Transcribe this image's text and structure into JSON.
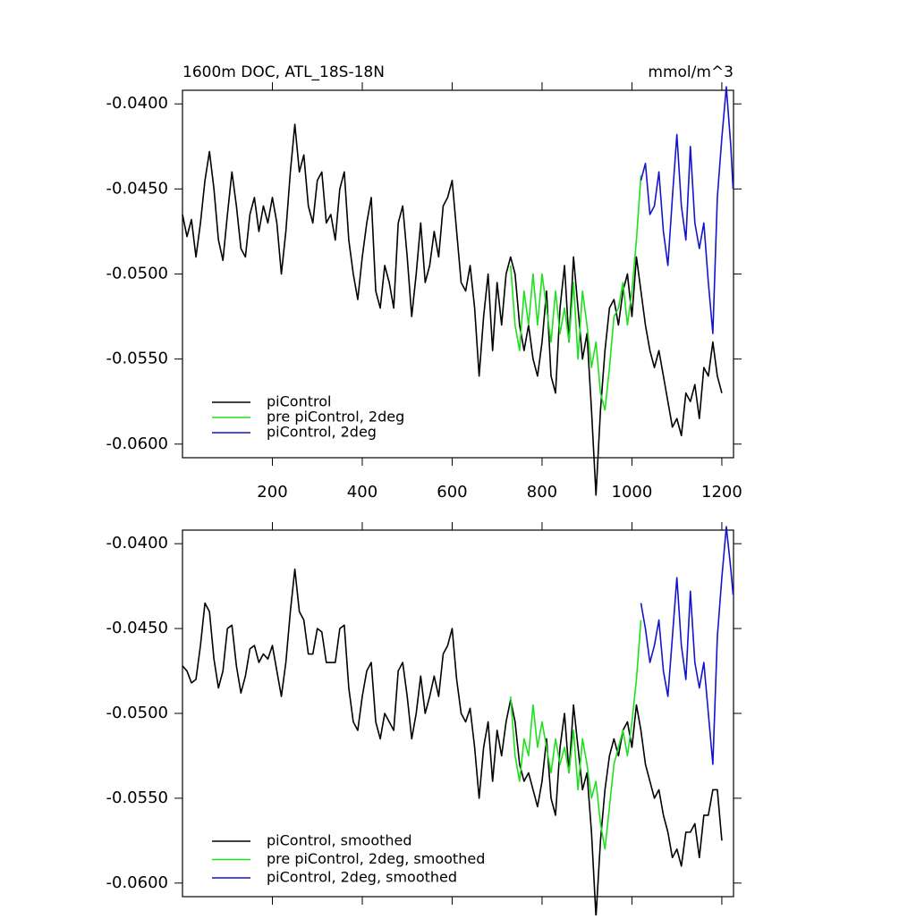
{
  "chart_data": [
    {
      "type": "line",
      "title": "1600m DOC, ATL_18S-18N",
      "y_units": "mmol/m^3",
      "xlim": [
        0,
        1226
      ],
      "ylim": [
        -0.0608,
        -0.0392
      ],
      "xticks": [
        200,
        400,
        600,
        800,
        1000,
        1200
      ],
      "yticks": [
        {
          "value": -0.04,
          "label": "-0.0400"
        },
        {
          "value": -0.045,
          "label": "-0.0450"
        },
        {
          "value": -0.05,
          "label": "-0.0500"
        },
        {
          "value": -0.055,
          "label": "-0.0550"
        },
        {
          "value": -0.06,
          "label": "-0.0600"
        }
      ],
      "legend_position": "lower left",
      "series": [
        {
          "name": "piControl",
          "color": "#000000",
          "x": [
            0,
            10,
            20,
            30,
            40,
            50,
            60,
            70,
            80,
            90,
            100,
            110,
            120,
            130,
            140,
            150,
            160,
            170,
            180,
            190,
            200,
            210,
            220,
            230,
            240,
            250,
            260,
            270,
            280,
            290,
            300,
            310,
            320,
            330,
            340,
            350,
            360,
            370,
            380,
            390,
            400,
            410,
            420,
            430,
            440,
            450,
            460,
            470,
            480,
            490,
            500,
            510,
            520,
            530,
            540,
            550,
            560,
            570,
            580,
            590,
            600,
            610,
            620,
            630,
            640,
            650,
            660,
            670,
            680,
            690,
            700,
            710,
            720,
            730,
            740,
            750,
            760,
            770,
            780,
            790,
            800,
            810,
            820,
            830,
            840,
            850,
            860,
            870,
            880,
            890,
            900,
            910,
            920,
            930,
            940,
            950,
            960,
            970,
            980,
            990,
            1000,
            1010,
            1020,
            1030,
            1040,
            1050,
            1060,
            1070,
            1080,
            1090,
            1100,
            1110,
            1120,
            1130,
            1140,
            1150,
            1160,
            1170,
            1180,
            1190,
            1200
          ],
          "values": [
            -0.0465,
            -0.0478,
            -0.0468,
            -0.049,
            -0.047,
            -0.0445,
            -0.0428,
            -0.045,
            -0.048,
            -0.0492,
            -0.0465,
            -0.044,
            -0.046,
            -0.0485,
            -0.049,
            -0.0465,
            -0.0455,
            -0.0475,
            -0.046,
            -0.047,
            -0.0455,
            -0.047,
            -0.05,
            -0.0475,
            -0.044,
            -0.0412,
            -0.044,
            -0.043,
            -0.046,
            -0.047,
            -0.0445,
            -0.044,
            -0.047,
            -0.0465,
            -0.048,
            -0.045,
            -0.044,
            -0.048,
            -0.05,
            -0.0515,
            -0.049,
            -0.047,
            -0.0455,
            -0.051,
            -0.052,
            -0.0495,
            -0.0505,
            -0.052,
            -0.047,
            -0.046,
            -0.049,
            -0.0525,
            -0.05,
            -0.047,
            -0.0505,
            -0.0495,
            -0.0475,
            -0.049,
            -0.046,
            -0.0455,
            -0.0445,
            -0.0475,
            -0.0505,
            -0.051,
            -0.0495,
            -0.052,
            -0.056,
            -0.0525,
            -0.05,
            -0.0545,
            -0.0505,
            -0.053,
            -0.05,
            -0.049,
            -0.05,
            -0.053,
            -0.0545,
            -0.053,
            -0.055,
            -0.056,
            -0.054,
            -0.051,
            -0.056,
            -0.057,
            -0.052,
            -0.0495,
            -0.054,
            -0.049,
            -0.052,
            -0.055,
            -0.0535,
            -0.058,
            -0.063,
            -0.058,
            -0.0545,
            -0.052,
            -0.0515,
            -0.053,
            -0.051,
            -0.05,
            -0.0525,
            -0.049,
            -0.051,
            -0.053,
            -0.0545,
            -0.0555,
            -0.0545,
            -0.056,
            -0.0575,
            -0.059,
            -0.0585,
            -0.0595,
            -0.057,
            -0.0575,
            -0.0565,
            -0.0585,
            -0.0555,
            -0.056,
            -0.054,
            -0.056,
            -0.057
          ]
        },
        {
          "name": "pre piControl, 2deg",
          "color": "#1fe01f",
          "x": [
            730,
            740,
            750,
            760,
            770,
            780,
            790,
            800,
            810,
            820,
            830,
            840,
            850,
            860,
            870,
            880,
            890,
            900,
            910,
            920,
            930,
            940,
            950,
            960,
            970,
            980,
            990,
            1000,
            1010,
            1020
          ],
          "values": [
            -0.0495,
            -0.053,
            -0.0545,
            -0.051,
            -0.053,
            -0.05,
            -0.053,
            -0.05,
            -0.052,
            -0.054,
            -0.051,
            -0.0535,
            -0.052,
            -0.054,
            -0.0505,
            -0.055,
            -0.051,
            -0.053,
            -0.0555,
            -0.054,
            -0.057,
            -0.058,
            -0.0555,
            -0.0525,
            -0.052,
            -0.0505,
            -0.053,
            -0.051,
            -0.048,
            -0.0442
          ]
        },
        {
          "name": "piControl, 2deg",
          "color": "#1414cc",
          "x": [
            1020,
            1030,
            1040,
            1050,
            1060,
            1070,
            1080,
            1090,
            1100,
            1110,
            1120,
            1130,
            1140,
            1150,
            1160,
            1170,
            1180,
            1190,
            1200,
            1210,
            1220,
            1225
          ],
          "values": [
            -0.0445,
            -0.0435,
            -0.0465,
            -0.046,
            -0.044,
            -0.0475,
            -0.0495,
            -0.0455,
            -0.0418,
            -0.046,
            -0.048,
            -0.0425,
            -0.047,
            -0.0485,
            -0.047,
            -0.0505,
            -0.0535,
            -0.0455,
            -0.042,
            -0.039,
            -0.0425,
            -0.045
          ]
        }
      ]
    },
    {
      "type": "line",
      "xlim": [
        0,
        1226
      ],
      "ylim": [
        -0.0608,
        -0.0392
      ],
      "yticks": [
        {
          "value": -0.04,
          "label": "-0.0400"
        },
        {
          "value": -0.045,
          "label": "-0.0450"
        },
        {
          "value": -0.05,
          "label": "-0.0500"
        },
        {
          "value": -0.055,
          "label": "-0.0550"
        },
        {
          "value": -0.06,
          "label": "-0.0600"
        }
      ],
      "legend_position": "lower left",
      "series": [
        {
          "name": "piControl, smoothed",
          "color": "#000000",
          "x": [
            0,
            10,
            20,
            30,
            40,
            50,
            60,
            70,
            80,
            90,
            100,
            110,
            120,
            130,
            140,
            150,
            160,
            170,
            180,
            190,
            200,
            210,
            220,
            230,
            240,
            250,
            260,
            270,
            280,
            290,
            300,
            310,
            320,
            330,
            340,
            350,
            360,
            370,
            380,
            390,
            400,
            410,
            420,
            430,
            440,
            450,
            460,
            470,
            480,
            490,
            500,
            510,
            520,
            530,
            540,
            550,
            560,
            570,
            580,
            590,
            600,
            610,
            620,
            630,
            640,
            650,
            660,
            670,
            680,
            690,
            700,
            710,
            720,
            730,
            740,
            750,
            760,
            770,
            780,
            790,
            800,
            810,
            820,
            830,
            840,
            850,
            860,
            870,
            880,
            890,
            900,
            910,
            920,
            930,
            940,
            950,
            960,
            970,
            980,
            990,
            1000,
            1010,
            1020,
            1030,
            1040,
            1050,
            1060,
            1070,
            1080,
            1090,
            1100,
            1110,
            1120,
            1130,
            1140,
            1150,
            1160,
            1170,
            1180,
            1190,
            1200
          ],
          "values": [
            -0.0472,
            -0.0475,
            -0.0482,
            -0.048,
            -0.046,
            -0.0435,
            -0.044,
            -0.0468,
            -0.0485,
            -0.0475,
            -0.045,
            -0.0448,
            -0.0472,
            -0.0488,
            -0.0478,
            -0.0462,
            -0.046,
            -0.047,
            -0.0465,
            -0.0468,
            -0.046,
            -0.0475,
            -0.049,
            -0.047,
            -0.044,
            -0.0415,
            -0.044,
            -0.0445,
            -0.0465,
            -0.0465,
            -0.045,
            -0.0452,
            -0.047,
            -0.047,
            -0.047,
            -0.045,
            -0.0448,
            -0.0485,
            -0.0505,
            -0.051,
            -0.049,
            -0.0475,
            -0.047,
            -0.0505,
            -0.0515,
            -0.05,
            -0.0505,
            -0.051,
            -0.0475,
            -0.047,
            -0.049,
            -0.0515,
            -0.05,
            -0.0478,
            -0.05,
            -0.049,
            -0.0478,
            -0.049,
            -0.0465,
            -0.046,
            -0.045,
            -0.048,
            -0.05,
            -0.0505,
            -0.0497,
            -0.052,
            -0.055,
            -0.052,
            -0.0505,
            -0.054,
            -0.051,
            -0.0525,
            -0.0505,
            -0.0492,
            -0.0505,
            -0.053,
            -0.054,
            -0.0535,
            -0.0545,
            -0.0555,
            -0.054,
            -0.0515,
            -0.055,
            -0.056,
            -0.052,
            -0.05,
            -0.0535,
            -0.0495,
            -0.052,
            -0.0545,
            -0.0535,
            -0.057,
            -0.062,
            -0.0575,
            -0.0545,
            -0.0525,
            -0.0515,
            -0.0525,
            -0.051,
            -0.0505,
            -0.052,
            -0.0495,
            -0.051,
            -0.053,
            -0.054,
            -0.055,
            -0.0545,
            -0.056,
            -0.057,
            -0.0585,
            -0.058,
            -0.059,
            -0.057,
            -0.057,
            -0.0565,
            -0.0585,
            -0.056,
            -0.056,
            -0.0545,
            -0.0545,
            -0.0575
          ]
        },
        {
          "name": "pre piControl, 2deg, smoothed",
          "color": "#1fe01f",
          "x": [
            730,
            740,
            750,
            760,
            770,
            780,
            790,
            800,
            810,
            820,
            830,
            840,
            850,
            860,
            870,
            880,
            890,
            900,
            910,
            920,
            930,
            940,
            950,
            960,
            970,
            980,
            990,
            1000,
            1010,
            1020
          ],
          "values": [
            -0.049,
            -0.0525,
            -0.054,
            -0.0515,
            -0.0525,
            -0.0495,
            -0.052,
            -0.0505,
            -0.052,
            -0.0535,
            -0.0515,
            -0.053,
            -0.052,
            -0.0535,
            -0.051,
            -0.0545,
            -0.0515,
            -0.053,
            -0.055,
            -0.054,
            -0.0565,
            -0.058,
            -0.0555,
            -0.053,
            -0.052,
            -0.051,
            -0.0525,
            -0.0505,
            -0.048,
            -0.0445
          ]
        },
        {
          "name": "piControl, 2deg, smoothed",
          "color": "#1414cc",
          "x": [
            1020,
            1030,
            1040,
            1050,
            1060,
            1070,
            1080,
            1090,
            1100,
            1110,
            1120,
            1130,
            1140,
            1150,
            1160,
            1170,
            1180,
            1190,
            1200,
            1210,
            1220,
            1225
          ],
          "values": [
            -0.0435,
            -0.045,
            -0.047,
            -0.046,
            -0.0445,
            -0.0475,
            -0.049,
            -0.0455,
            -0.042,
            -0.046,
            -0.048,
            -0.0428,
            -0.047,
            -0.0485,
            -0.047,
            -0.05,
            -0.053,
            -0.0455,
            -0.042,
            -0.039,
            -0.0415,
            -0.043
          ]
        }
      ]
    }
  ]
}
